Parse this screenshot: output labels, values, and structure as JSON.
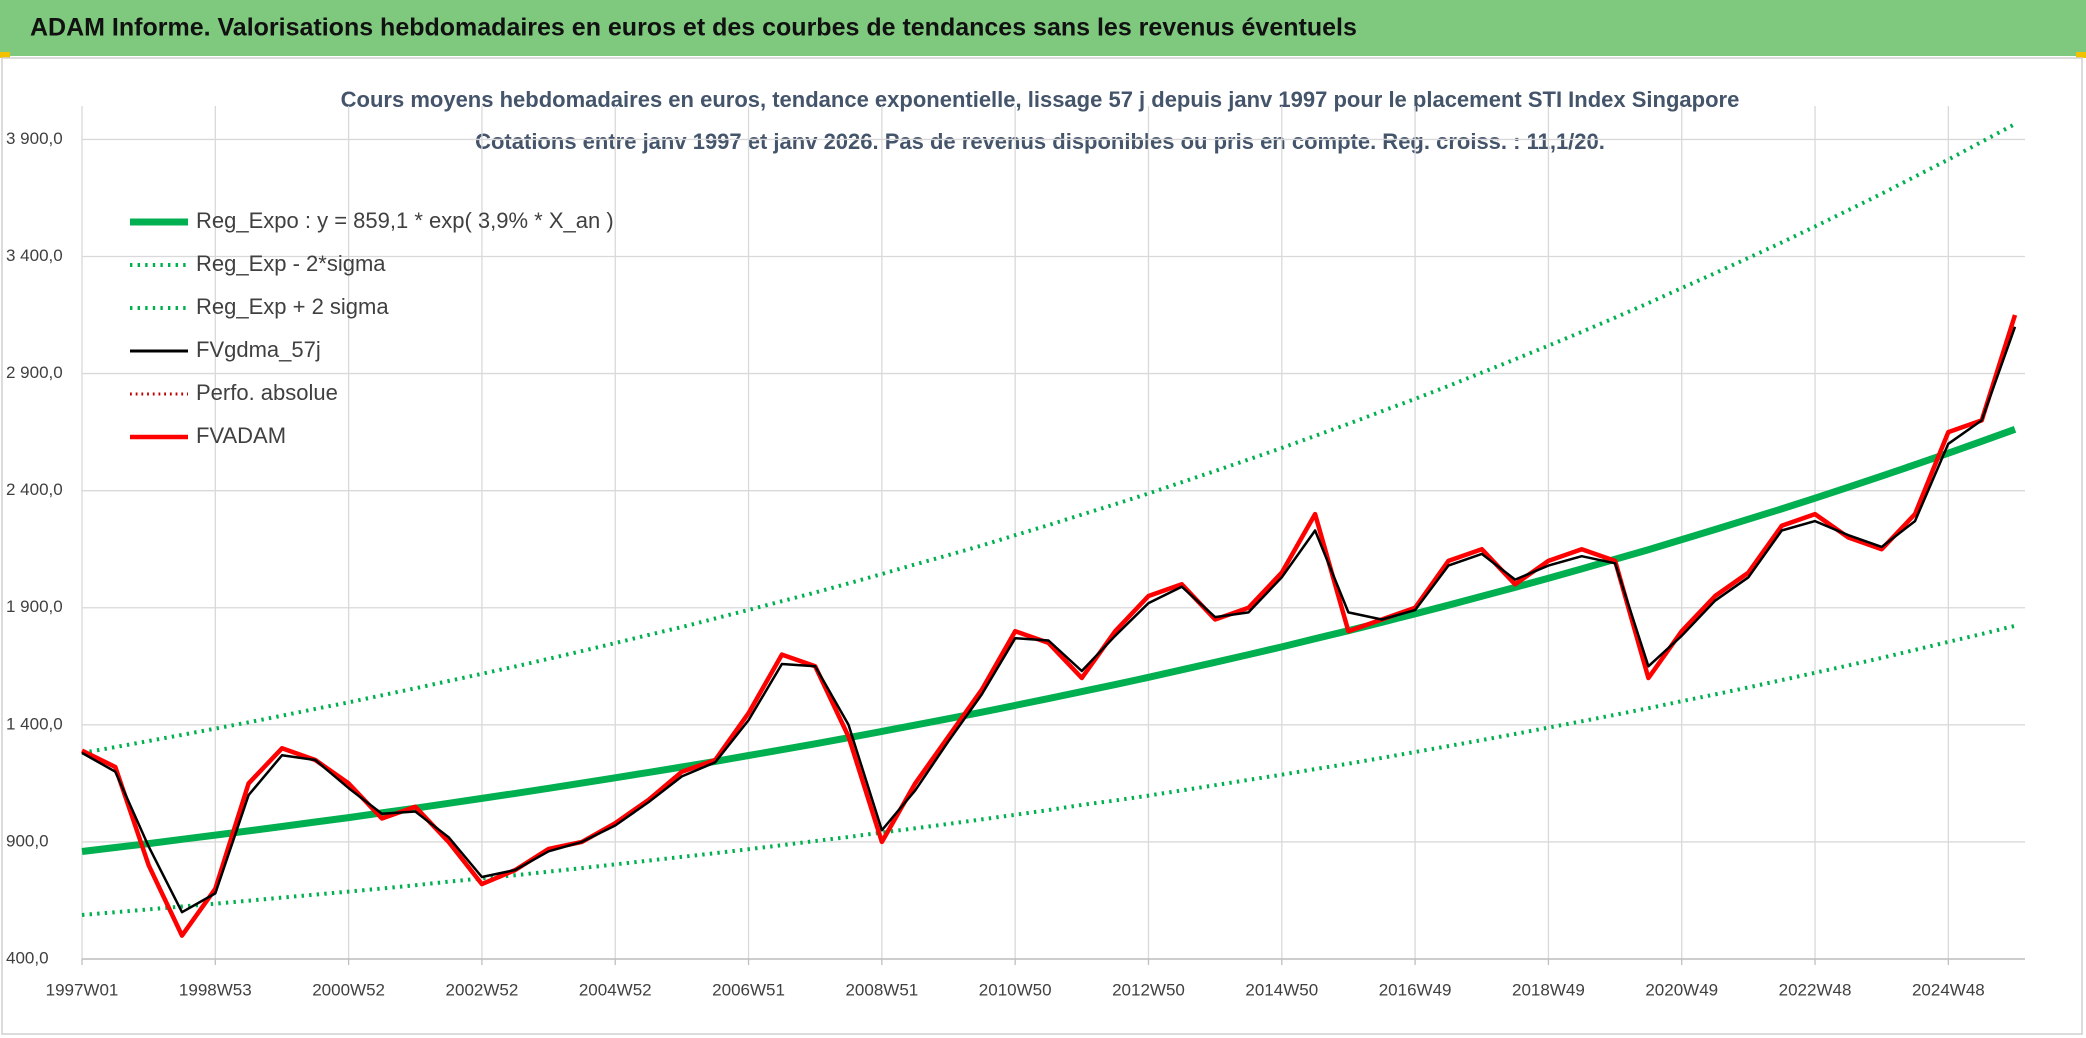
{
  "header": {
    "title": "ADAM Informe. Valorisations hebdomadaires en euros et des courbes de tendances sans les revenus éventuels"
  },
  "chart_data": {
    "type": "line",
    "title": "Cours moyens hebdomadaires en euros, tendance exponentielle, lissage 57 j depuis janv 1997 pour le placement STI Index Singapore",
    "subtitle": "Cotations entre janv 1997 et janv 2026. Pas de revenus disponibles ou pris en compte. Reg. croiss. : 11,1/20.",
    "categories": [
      "1997W01",
      null,
      null,
      null,
      "1998W53",
      null,
      null,
      null,
      "2000W52",
      null,
      null,
      null,
      "2002W52",
      null,
      null,
      null,
      "2004W52",
      null,
      null,
      null,
      "2006W51",
      null,
      null,
      null,
      "2008W51",
      null,
      null,
      null,
      "2010W50",
      null,
      null,
      null,
      "2012W50",
      null,
      null,
      null,
      "2014W50",
      null,
      null,
      null,
      "2016W49",
      null,
      null,
      null,
      "2018W49",
      null,
      null,
      null,
      "2020W49",
      null,
      null,
      null,
      "2022W48",
      null,
      null,
      null,
      "2024W48",
      null,
      null
    ],
    "ylim": [
      400,
      4000
    ],
    "yticks": [
      {
        "value": 400,
        "label": "400,0"
      },
      {
        "value": 900,
        "label": "900,0"
      },
      {
        "value": 1400,
        "label": "1 400,0"
      },
      {
        "value": 1900,
        "label": "1 900,0"
      },
      {
        "value": 2400,
        "label": "2 400,0"
      },
      {
        "value": 2900,
        "label": "2 900,0"
      },
      {
        "value": 3400,
        "label": "3 400,0"
      },
      {
        "value": 3900,
        "label": "3 900,0"
      }
    ],
    "grid": true,
    "legend": "upper left",
    "series": [
      {
        "name": "Reg_Expo : y = 859,1 * exp( 3,9% *  X_an )",
        "color": "#00b050",
        "style": "solid",
        "values": [
          859,
          876,
          893,
          911,
          929,
          947,
          966,
          985,
          1004,
          1024,
          1044,
          1065,
          1086,
          1107,
          1129,
          1151,
          1174,
          1197,
          1220,
          1244,
          1269,
          1294,
          1319,
          1345,
          1372,
          1399,
          1426,
          1454,
          1483,
          1512,
          1542,
          1572,
          1603,
          1635,
          1667,
          1700,
          1733,
          1768,
          1802,
          1838,
          1874,
          1911,
          1949,
          1987,
          2026,
          2066,
          2107,
          2148,
          2191,
          2234,
          2278,
          2322,
          2368,
          2415,
          2462,
          2511,
          2560,
          2611,
          2662
        ]
      },
      {
        "name": "Reg_Exp - 2*sigma",
        "color": "#00b050",
        "style": "dotted",
        "values": [
          588,
          600,
          612,
          624,
          636,
          649,
          662,
          675,
          688,
          701,
          715,
          730,
          744,
          758,
          773,
          788,
          804,
          820,
          836,
          852,
          869,
          886,
          904,
          921,
          940,
          958,
          977,
          996,
          1016,
          1036,
          1058,
          1077,
          1098,
          1120,
          1142,
          1165,
          1187,
          1211,
          1234,
          1259,
          1284,
          1309,
          1335,
          1361,
          1388,
          1415,
          1443,
          1471,
          1501,
          1530,
          1560,
          1591,
          1622,
          1654,
          1686,
          1720,
          1754,
          1788,
          1823
        ]
      },
      {
        "name": "Reg_Exp + 2 sigma",
        "color": "#00b050",
        "style": "dotted",
        "values": [
          1280,
          1305,
          1331,
          1357,
          1384,
          1411,
          1439,
          1468,
          1496,
          1526,
          1556,
          1587,
          1618,
          1649,
          1682,
          1715,
          1749,
          1784,
          1818,
          1854,
          1891,
          1928,
          1965,
          2004,
          2044,
          2085,
          2125,
          2166,
          2210,
          2253,
          2298,
          2342,
          2388,
          2436,
          2484,
          2533,
          2582,
          2634,
          2685,
          2739,
          2792,
          2847,
          2904,
          2961,
          3019,
          3078,
          3139,
          3201,
          3265,
          3329,
          3394,
          3460,
          3528,
          3598,
          3668,
          3741,
          3814,
          3890,
          3966
        ]
      },
      {
        "name": "FVgdma_57j",
        "color": "#000000",
        "style": "solid",
        "values": [
          1280,
          1200,
          880,
          600,
          680,
          1100,
          1270,
          1250,
          1130,
          1020,
          1030,
          920,
          750,
          780,
          860,
          900,
          970,
          1070,
          1180,
          1240,
          1420,
          1660,
          1650,
          1400,
          950,
          1120,
          1330,
          1530,
          1770,
          1760,
          1630,
          1780,
          1920,
          1990,
          1860,
          1880,
          2030,
          2230,
          1880,
          1850,
          1890,
          2080,
          2130,
          2020,
          2080,
          2120,
          2090,
          1650,
          1780,
          1930,
          2030,
          2230,
          2270,
          2210,
          2160,
          2270,
          2600,
          2700,
          3100
        ]
      },
      {
        "name": "Perfo. absolue",
        "color": "#c00000",
        "style": "dotted",
        "values": [
          null,
          null,
          null,
          null,
          null,
          null,
          null,
          null,
          null,
          null,
          null,
          null,
          null,
          null,
          null,
          null,
          null,
          null,
          null,
          null,
          null,
          null,
          null,
          null,
          null,
          null,
          null,
          null,
          null,
          null,
          null,
          null,
          null,
          null,
          null,
          null,
          null,
          null,
          null,
          null,
          null,
          null,
          null,
          null,
          null,
          null,
          null,
          null,
          null,
          null,
          null,
          null,
          null,
          null,
          null,
          null,
          null,
          null,
          null
        ]
      },
      {
        "name": "FVADAM",
        "color": "#ff0000",
        "style": "solid",
        "values": [
          1290,
          1220,
          800,
          500,
          700,
          1150,
          1300,
          1250,
          1150,
          1000,
          1050,
          900,
          720,
          780,
          870,
          900,
          980,
          1080,
          1200,
          1250,
          1450,
          1700,
          1650,
          1350,
          900,
          1150,
          1350,
          1550,
          1800,
          1750,
          1600,
          1800,
          1950,
          2000,
          1850,
          1900,
          2050,
          2300,
          1800,
          1850,
          1900,
          2100,
          2150,
          2000,
          2100,
          2150,
          2100,
          1600,
          1800,
          1950,
          2050,
          2250,
          2300,
          2200,
          2150,
          2300,
          2650,
          2700,
          3150
        ]
      }
    ]
  }
}
